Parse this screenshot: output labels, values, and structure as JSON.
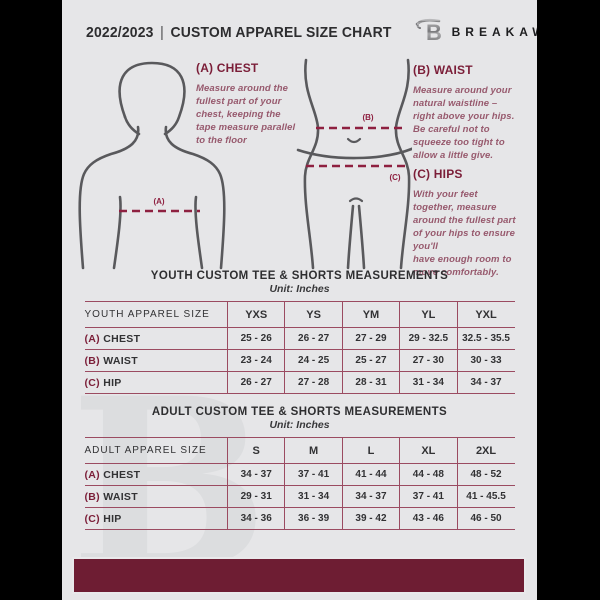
{
  "header": {
    "year": "2022/2023",
    "divider": "|",
    "title": "CUSTOM APPAREL SIZE CHART",
    "brand": "BREAKAWAY",
    "logo_letter": "B"
  },
  "guide": {
    "chest": {
      "heading": "(A) CHEST",
      "body": "Measure around the\nfullest part of your\nchest, keeping the\ntape measure parallel\nto the floor"
    },
    "waist": {
      "heading": "(B) WAIST",
      "body": "Measure around your\nnatural waistline –\nright above your hips.\nBe careful not to\nsqueeze too tight to\nallow a little give."
    },
    "hips": {
      "heading": "(C) HIPS",
      "body": "With your feet\ntogether, measure\naround the fullest part\nof your hips to ensure\nyou'll\nhave enough room to\nmove comfortably."
    },
    "marker_a": "(A)",
    "marker_b": "(B)",
    "marker_c": "(C)"
  },
  "youth": {
    "title": "YOUTH CUSTOM TEE & SHORTS MEASUREMENTS",
    "unit": "Unit: Inches",
    "table": {
      "header": [
        "YOUTH APPAREL SIZE",
        "YXS",
        "YS",
        "YM",
        "YL",
        "YXL"
      ],
      "rows": [
        {
          "prefix": "(A)",
          "label": "CHEST",
          "values": [
            "25 - 26",
            "26 - 27",
            "27 - 29",
            "29 - 32.5",
            "32.5 - 35.5"
          ]
        },
        {
          "prefix": "(B)",
          "label": "WAIST",
          "values": [
            "23 - 24",
            "24 - 25",
            "25 - 27",
            "27 - 30",
            "30 - 33"
          ]
        },
        {
          "prefix": "(C)",
          "label": "HIP",
          "values": [
            "26 - 27",
            "27 - 28",
            "28 - 31",
            "31 - 34",
            "34 - 37"
          ]
        }
      ]
    }
  },
  "adult": {
    "title": "ADULT CUSTOM TEE & SHORTS MEASUREMENTS",
    "unit": "Unit: Inches",
    "table": {
      "header": [
        "ADULT APPAREL SIZE",
        "S",
        "M",
        "L",
        "XL",
        "2XL"
      ],
      "rows": [
        {
          "prefix": "(A)",
          "label": "CHEST",
          "values": [
            "34 - 37",
            "37 - 41",
            "41 - 44",
            "44 - 48",
            "48 - 52"
          ]
        },
        {
          "prefix": "(B)",
          "label": "WAIST",
          "values": [
            "29 - 31",
            "31 - 34",
            "34 - 37",
            "37 - 41",
            "41 - 45.5"
          ]
        },
        {
          "prefix": "(C)",
          "label": "HIP",
          "values": [
            "34 - 36",
            "36 - 39",
            "39 - 42",
            "43 - 46",
            "46 - 50"
          ]
        }
      ]
    }
  },
  "watermark_letter": "B",
  "colors": {
    "page_bg": "#e6e6e8",
    "frame": "#000000",
    "footer_maroon": "#6e1d33",
    "heading_maroon": "#7b1e38",
    "dashed_line": "#8e2040",
    "table_border": "#9b4b61",
    "muted_maroon_text": "#97596d",
    "dark_text": "#2e2e30",
    "figure_stroke": "#59595c",
    "watermark": "#dcdddf"
  }
}
